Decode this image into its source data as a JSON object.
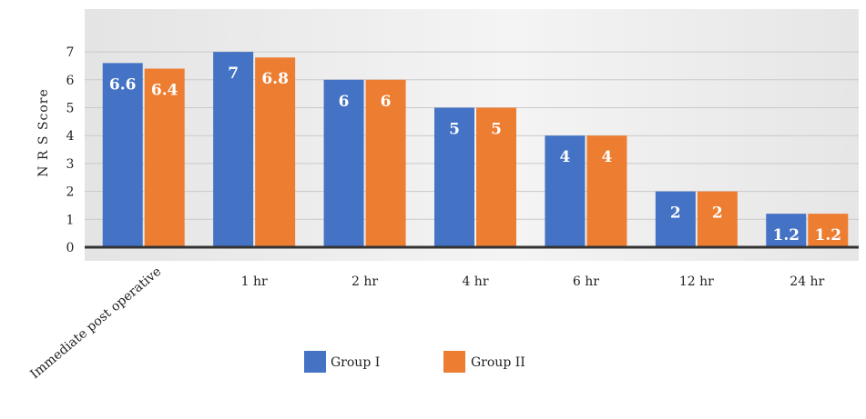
{
  "chart_data": {
    "type": "bar",
    "title": "",
    "xlabel": "",
    "ylabel": "N R S Score",
    "ylim": [
      0,
      7
    ],
    "yticks": [
      0,
      1,
      2,
      3,
      4,
      5,
      6,
      7
    ],
    "grid": true,
    "legend_position": "bottom",
    "categories": [
      "Immediate post operative",
      "1 hr",
      "2 hr",
      "4 hr",
      "6 hr",
      "12 hr",
      "24 hr"
    ],
    "series": [
      {
        "name": "Group I",
        "color": "#4472c4",
        "values": [
          6.6,
          7,
          6,
          5,
          4,
          2,
          1.2
        ]
      },
      {
        "name": "Group II",
        "color": "#ed7d31",
        "values": [
          6.4,
          6.8,
          6,
          5,
          4,
          2,
          1.2
        ]
      }
    ]
  }
}
